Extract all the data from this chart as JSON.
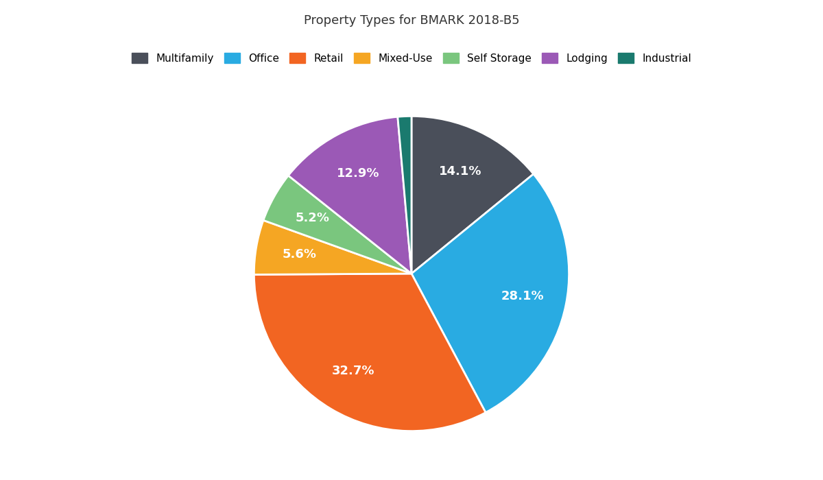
{
  "title": "Property Types for BMARK 2018-B5",
  "slices": [
    {
      "label": "Multifamily",
      "value": 14.1,
      "color": "#4a4f5a"
    },
    {
      "label": "Office",
      "value": 28.1,
      "color": "#29abe2"
    },
    {
      "label": "Retail",
      "value": 32.7,
      "color": "#f26522"
    },
    {
      "label": "Mixed-Use",
      "value": 5.6,
      "color": "#f5a623"
    },
    {
      "label": "Self Storage",
      "value": 5.2,
      "color": "#7ac67e"
    },
    {
      "label": "Lodging",
      "value": 12.9,
      "color": "#9b59b6"
    },
    {
      "label": "Industrial",
      "value": 1.4,
      "color": "#1a7a6e"
    }
  ],
  "title_fontsize": 13,
  "label_fontsize": 13,
  "legend_fontsize": 11,
  "background_color": "#ffffff",
  "text_color": "#ffffff",
  "startangle": 90
}
